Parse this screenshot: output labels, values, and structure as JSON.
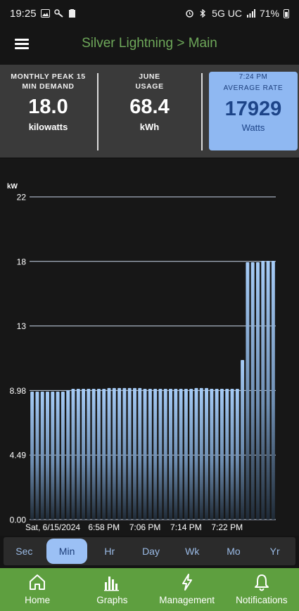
{
  "status_bar": {
    "time": "19:25",
    "network": "5G UC",
    "battery": "71%",
    "icons": [
      "image-icon",
      "tools-icon",
      "clipboard-icon",
      "alarm-icon",
      "bluetooth-icon",
      "signal-icon",
      "battery-icon"
    ]
  },
  "header": {
    "title": "Silver Lightning > Main",
    "menu_icon": "hamburger-menu-icon"
  },
  "stats": {
    "peak": {
      "label_line1": "MONTHLY PEAK 15",
      "label_line2": "MIN DEMAND",
      "value": "18.0",
      "unit": "kilowatts"
    },
    "usage": {
      "label_line1": "JUNE",
      "label_line2": "USAGE",
      "value": "68.4",
      "unit": "kWh"
    },
    "rate": {
      "time": "7:24 PM",
      "label": "AVERAGE RATE",
      "value": "17929",
      "unit": "Watts"
    }
  },
  "chart_data": {
    "type": "bar",
    "ylabel": "kW",
    "ylim": [
      0,
      22.45
    ],
    "yticks": [
      "0.00",
      "4.49",
      "8.98",
      "13",
      "18",
      "22"
    ],
    "ytick_values": [
      0,
      4.49,
      8.98,
      13.47,
      17.96,
      22.45
    ],
    "xtick_labels": [
      "Sat, 6/15/2024",
      "6:58 PM",
      "7:06 PM",
      "7:14 PM",
      "7:22 PM"
    ],
    "xtick_positions": [
      2,
      14,
      22,
      30,
      38
    ],
    "values": [
      8.9,
      8.9,
      8.9,
      8.9,
      8.9,
      8.9,
      8.9,
      9.0,
      9.1,
      9.1,
      9.1,
      9.1,
      9.1,
      9.1,
      9.1,
      9.15,
      9.15,
      9.15,
      9.15,
      9.15,
      9.15,
      9.15,
      9.1,
      9.1,
      9.1,
      9.1,
      9.1,
      9.1,
      9.1,
      9.1,
      9.1,
      9.1,
      9.15,
      9.15,
      9.15,
      9.1,
      9.1,
      9.1,
      9.1,
      9.1,
      9.1,
      11.1,
      17.9,
      17.9,
      17.9,
      18.0,
      18.0,
      18.0
    ],
    "bar_color": "#9ec4f2",
    "grid": true
  },
  "range_tabs": {
    "items": [
      "Sec",
      "Min",
      "Hr",
      "Day",
      "Wk",
      "Mo",
      "Yr"
    ],
    "selected": "Min"
  },
  "bottom_nav": {
    "items": [
      {
        "label": "Home",
        "icon": "home-icon"
      },
      {
        "label": "Graphs",
        "icon": "bar-chart-icon"
      },
      {
        "label": "Management",
        "icon": "lightning-icon"
      },
      {
        "label": "Notifications",
        "icon": "bell-icon"
      }
    ]
  },
  "colors": {
    "accent_green": "#5e9f3f",
    "title_green": "#6ea85a",
    "highlight_blue": "#8fb8f2",
    "value_blue": "#1d4488"
  }
}
